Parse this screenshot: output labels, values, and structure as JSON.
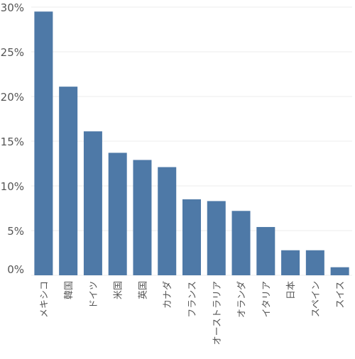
{
  "colors": {
    "bar": "#4e79a7",
    "gridline": "#ececec",
    "tick_text": "#555555",
    "axis_line": "#d0d0d0"
  },
  "chart_data": {
    "type": "bar",
    "categories": [
      "メキシコ",
      "韓国",
      "ドイツ",
      "米国",
      "英国",
      "カナダ",
      "フランス",
      "オーストラリア",
      "オランダ",
      "イタリア",
      "日本",
      "スペイン",
      "スイス"
    ],
    "series": [
      {
        "values": [
          29.5,
          21.1,
          16.1,
          13.7,
          12.9,
          12.1,
          8.5,
          8.3,
          7.2,
          5.4,
          2.8,
          2.8,
          0.9
        ]
      }
    ],
    "ylim": [
      0,
      30
    ],
    "yticks": [
      0,
      5,
      10,
      15,
      20,
      25,
      30
    ],
    "ytick_labels": [
      "0%",
      "5%",
      "10%",
      "15%",
      "20%",
      "25%",
      "30%"
    ],
    "title": "",
    "xlabel": "",
    "ylabel": "",
    "grid": "horizontal",
    "legend": "none"
  }
}
